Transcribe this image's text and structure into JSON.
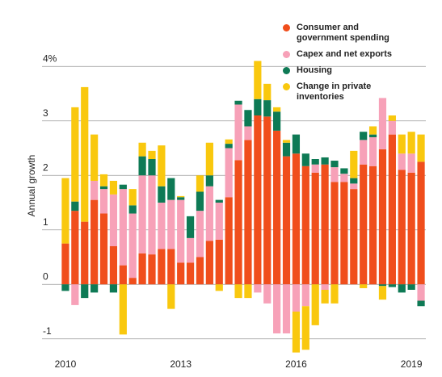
{
  "chart_data": {
    "type": "bar",
    "stacked": true,
    "ylabel": "Annual growth",
    "categories": [
      "2010",
      null,
      null,
      null,
      null,
      null,
      null,
      null,
      null,
      null,
      null,
      null,
      "2013",
      null,
      null,
      null,
      null,
      null,
      null,
      null,
      null,
      null,
      null,
      null,
      "2016",
      null,
      null,
      null,
      null,
      null,
      null,
      null,
      null,
      null,
      null,
      null,
      "2019",
      null
    ],
    "series": [
      {
        "name": "Consumer and government spending",
        "color": "#f04e1c",
        "values": [
          0.75,
          1.35,
          1.15,
          1.55,
          1.3,
          0.7,
          0.35,
          0.12,
          0.57,
          0.55,
          0.65,
          0.65,
          0.4,
          0.4,
          0.5,
          0.8,
          0.82,
          1.6,
          2.28,
          2.65,
          3.1,
          3.08,
          2.82,
          2.35,
          2.4,
          2.17,
          2.05,
          2.2,
          1.88,
          1.88,
          1.75,
          2.2,
          2.17,
          2.48,
          2.75,
          2.1,
          2.05,
          2.25
        ]
      },
      {
        "name": "Capex and net exports",
        "color": "#f7a1b8",
        "values": [
          0,
          -0.38,
          0,
          0.35,
          0.45,
          0.95,
          1.4,
          1.18,
          1.43,
          1.45,
          0.85,
          0.9,
          1.15,
          0.45,
          0.85,
          1.0,
          0.68,
          0.9,
          1.02,
          0.25,
          -0.15,
          -0.35,
          -0.9,
          -0.9,
          -0.5,
          -0.4,
          0.15,
          -0.1,
          0.27,
          0.15,
          0.1,
          0.45,
          0.53,
          0.94,
          0.25,
          0.3,
          0.35,
          -0.3
        ]
      },
      {
        "name": "Housing",
        "color": "#0e7a55",
        "values": [
          -0.12,
          0.17,
          -0.25,
          -0.15,
          0.05,
          -0.15,
          0.08,
          0.15,
          0.35,
          0.3,
          0.3,
          0.4,
          0.05,
          0.4,
          0.35,
          0.2,
          0.05,
          0.08,
          0.07,
          0.3,
          0.3,
          0.3,
          0.35,
          0.25,
          0.35,
          0.23,
          0.1,
          0.13,
          0.12,
          0.1,
          0.1,
          0.15,
          0.05,
          -0.03,
          -0.05,
          -0.15,
          -0.1,
          -0.1
        ]
      },
      {
        "name": "Change in private inventories",
        "color": "#f9c80e",
        "values": [
          1.2,
          1.73,
          2.47,
          0.85,
          0.22,
          0.25,
          -0.92,
          0.3,
          0.25,
          0.15,
          0.75,
          -0.45,
          0.02,
          0,
          0.3,
          0.6,
          -0.12,
          0.08,
          -0.25,
          -0.25,
          0.7,
          0.3,
          0.08,
          0.05,
          -0.75,
          -0.8,
          -0.75,
          -0.25,
          -0.35,
          0,
          0.5,
          -0.07,
          0.15,
          -0.25,
          0.1,
          0.35,
          0.4,
          0.5
        ]
      }
    ],
    "ylim": [
      -1.3,
      4.3
    ],
    "yticks": [
      -1,
      0,
      1,
      2,
      3,
      {
        "value": 4,
        "label": "4%"
      }
    ],
    "grid": true
  }
}
